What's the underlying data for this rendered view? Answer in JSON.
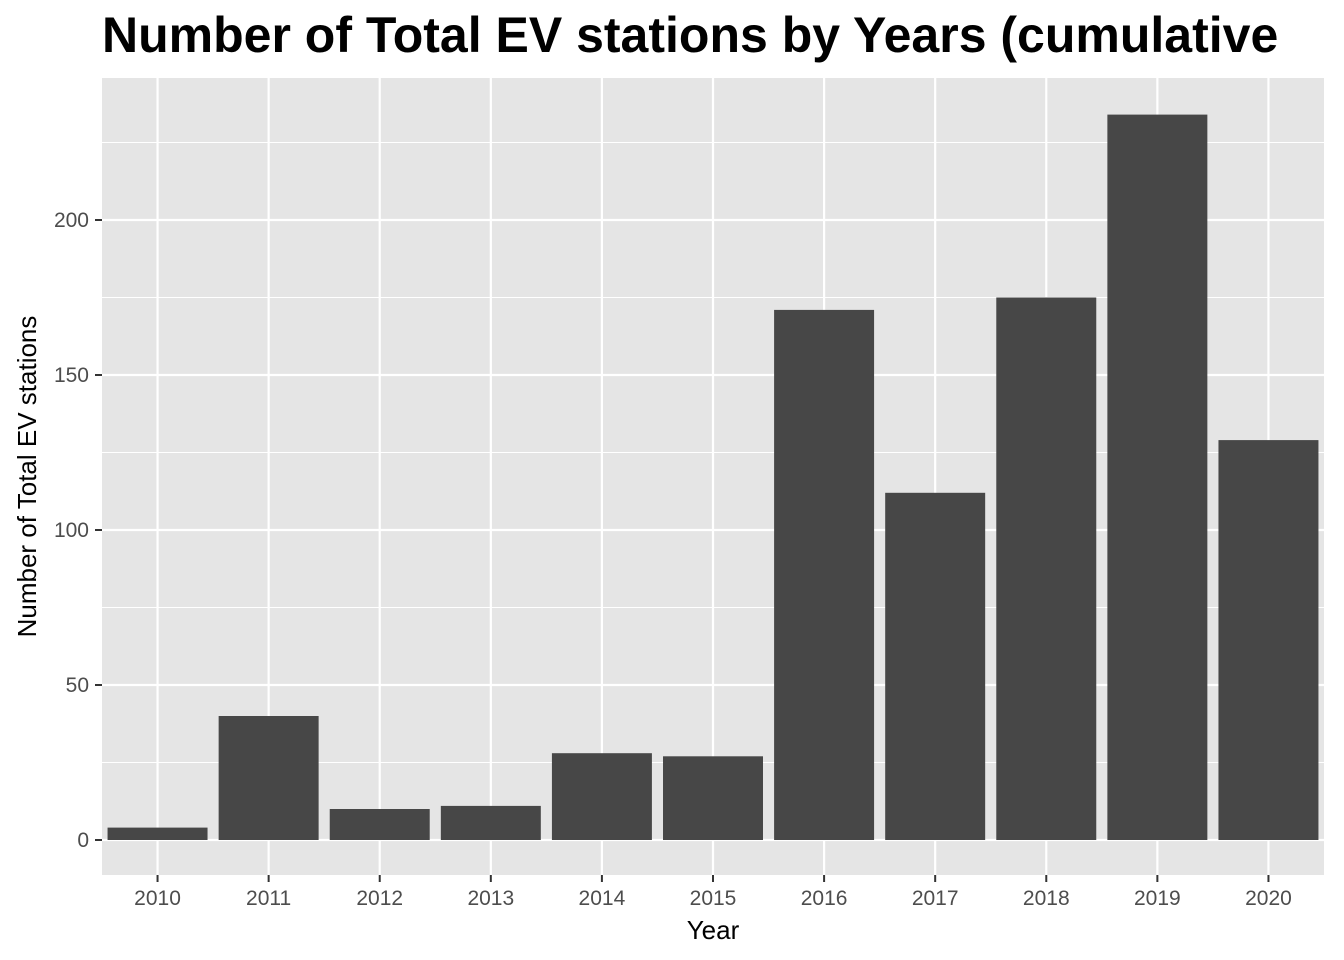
{
  "chart_data": {
    "type": "bar",
    "title": "Number of Total EV stations by Years (cumulative",
    "xlabel": "Year",
    "ylabel": "Number of Total EV stations",
    "categories": [
      "2010",
      "2011",
      "2012",
      "2013",
      "2014",
      "2015",
      "2016",
      "2017",
      "2018",
      "2019",
      "2020"
    ],
    "values": [
      4,
      40,
      10,
      11,
      28,
      27,
      171,
      112,
      175,
      234,
      129
    ],
    "ylim": [
      -11.7,
      245.7
    ],
    "yticks": [
      0,
      50,
      100,
      150,
      200
    ],
    "ytick_labels": [
      "0",
      "50",
      "100",
      "150",
      "200"
    ],
    "grid": true,
    "legend": "none",
    "colors": {
      "bar": "#474747",
      "panel": "#e5e5e5",
      "grid": "#ffffff",
      "tick_label": "#4d4d4d",
      "axis_tick": "#333333"
    }
  }
}
